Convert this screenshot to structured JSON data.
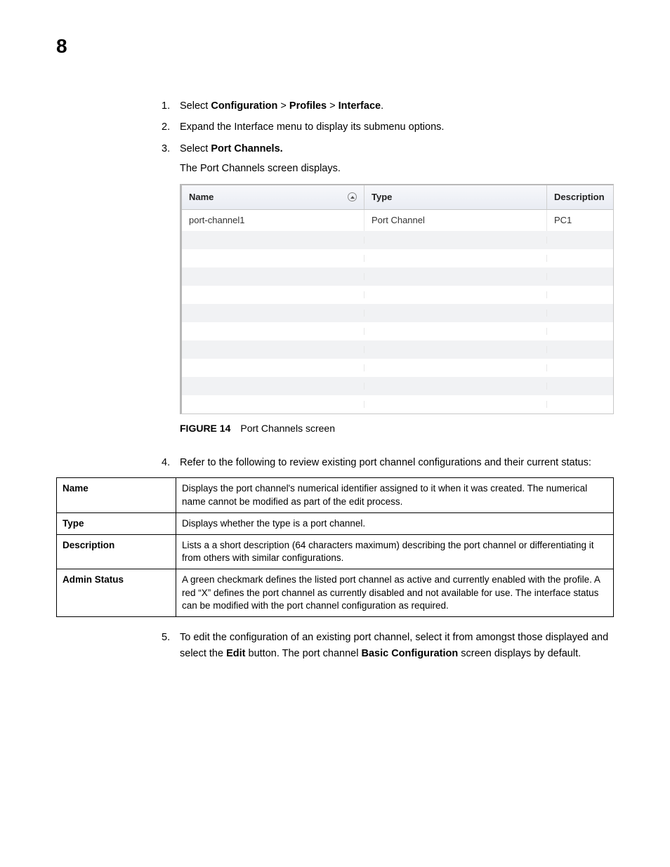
{
  "chapter_number": "8",
  "steps": {
    "s1_num": "1.",
    "s1_prefix": "Select ",
    "s1_b1": "Configuration",
    "s1_sep1": " > ",
    "s1_b2": "Profiles",
    "s1_sep2": " > ",
    "s1_b3": "Interface",
    "s1_suffix": ".",
    "s2_num": "2.",
    "s2_text": "Expand the Interface menu to display its submenu options.",
    "s3_num": "3.",
    "s3_prefix": "Select ",
    "s3_b1": "Port Channels.",
    "s3_sub": "The Port Channels screen displays.",
    "s4_num": "4.",
    "s4_text": "Refer to the following to review existing port channel configurations and their current status:",
    "s5_num": "5.",
    "s5_prefix": "To edit the configuration of an existing port channel, select it from amongst those displayed and select the ",
    "s5_b1": "Edit",
    "s5_mid": " button. The port channel ",
    "s5_b2": "Basic Configuration",
    "s5_suffix": " screen displays by default."
  },
  "screenshot": {
    "columns": {
      "name": "Name",
      "type": "Type",
      "desc": "Description"
    },
    "row0": {
      "name": "port-channel1",
      "type": "Port Channel",
      "desc": "PC1"
    },
    "blank_rows": 10,
    "colors": {
      "header_bg_top": "#f7f8fb",
      "header_bg_bottom": "#e9ecf3",
      "stripe_bg": "#f1f2f4",
      "border": "#c7c7c7"
    }
  },
  "figure": {
    "label": "FIGURE 14",
    "title": "Port Channels screen"
  },
  "definitions": [
    {
      "term": "Name",
      "desc": "Displays the port channel's numerical identifier assigned to it when it was created. The numerical name cannot be modified as part of the edit process."
    },
    {
      "term": "Type",
      "desc": "Displays whether the type is a port channel."
    },
    {
      "term": "Description",
      "desc": "Lists a a short description (64 characters maximum) describing the port channel or differentiating it from others with similar configurations."
    },
    {
      "term": "Admin Status",
      "desc": "A green checkmark defines the listed port channel as active and currently enabled with the profile. A red “X” defines the port channel as currently disabled and not available for use. The interface status can be modified with the port channel configuration as required."
    }
  ]
}
